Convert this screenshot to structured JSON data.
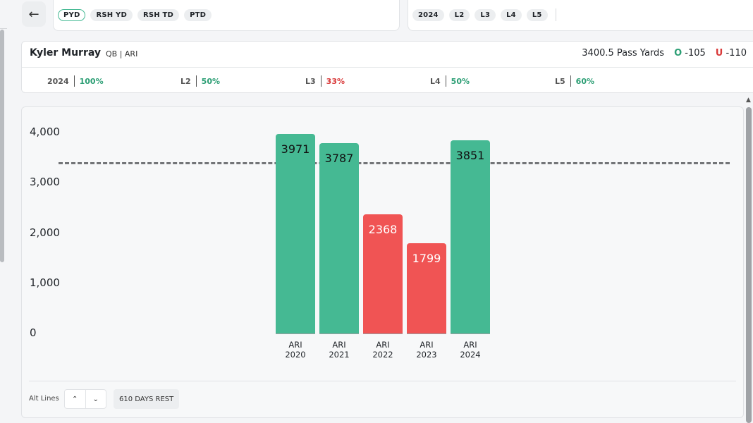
{
  "nav": {
    "back_icon": "arrow-left-icon"
  },
  "stat_tabs": [
    {
      "label": "PYD",
      "active": true
    },
    {
      "label": "RSH YD",
      "active": false
    },
    {
      "label": "RSH TD",
      "active": false
    },
    {
      "label": "PTD",
      "active": false
    }
  ],
  "period_tabs": [
    {
      "label": "2024"
    },
    {
      "label": "L2"
    },
    {
      "label": "L3"
    },
    {
      "label": "L4"
    },
    {
      "label": "L5"
    }
  ],
  "player": {
    "name": "Kyler Murray",
    "meta": "QB | ARI",
    "line_label": "3400.5 Pass Yards",
    "over_label": "O",
    "over_odds": "-105",
    "under_label": "U",
    "under_odds": "-110"
  },
  "hit_rates": [
    {
      "label": "2024",
      "value": "100%",
      "status": "good"
    },
    {
      "label": "L2",
      "value": "50%",
      "status": "good"
    },
    {
      "label": "L3",
      "value": "33%",
      "status": "bad"
    },
    {
      "label": "L4",
      "value": "50%",
      "status": "good"
    },
    {
      "label": "L5",
      "value": "60%",
      "status": "good"
    }
  ],
  "chart_data": {
    "type": "bar",
    "categories": [
      "ARI 2020",
      "ARI 2021",
      "ARI 2022",
      "ARI 2023",
      "ARI 2024"
    ],
    "category_lines": [
      [
        "ARI",
        "2020"
      ],
      [
        "ARI",
        "2021"
      ],
      [
        "ARI",
        "2022"
      ],
      [
        "ARI",
        "2023"
      ],
      [
        "ARI",
        "2024"
      ]
    ],
    "values": [
      3971,
      3787,
      2368,
      1799,
      3851
    ],
    "value_labels": [
      "3971",
      "3787",
      "2368",
      "1799",
      "3851"
    ],
    "line": 3400.5,
    "yticks": [
      "4,000",
      "3,000",
      "2,000",
      "1,000",
      "0"
    ],
    "ytick_values": [
      4000,
      3000,
      2000,
      1000,
      0
    ],
    "ylim": [
      0,
      4000
    ],
    "over_color": "#45b993",
    "under_color": "#f05454",
    "title": "",
    "xlabel": "",
    "ylabel": ""
  },
  "footer": {
    "alt_lines_label": "Alt Lines",
    "alt_up_icon": "chevron-up-icon",
    "alt_down_icon": "chevron-down-icon",
    "rest_badge": "610 DAYS REST"
  }
}
